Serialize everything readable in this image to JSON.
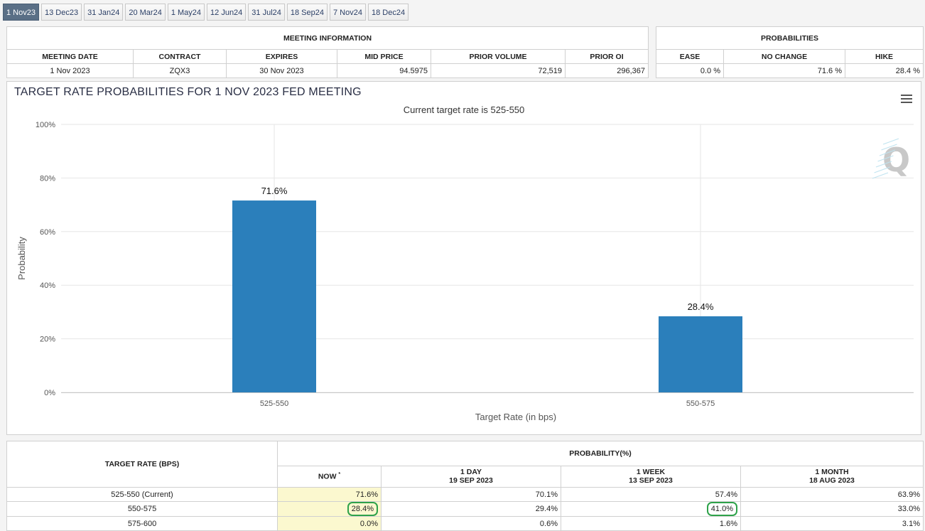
{
  "tabs": [
    "1 Nov23",
    "13 Dec23",
    "31 Jan24",
    "20 Mar24",
    "1 May24",
    "12 Jun24",
    "31 Jul24",
    "18 Sep24",
    "7 Nov24",
    "18 Dec24"
  ],
  "meeting_info": {
    "title": "MEETING INFORMATION",
    "headers": [
      "MEETING DATE",
      "CONTRACT",
      "EXPIRES",
      "MID PRICE",
      "PRIOR VOLUME",
      "PRIOR OI"
    ],
    "row": [
      "1 Nov 2023",
      "ZQX3",
      "30 Nov 2023",
      "94.5975",
      "72,519",
      "296,367"
    ]
  },
  "probabilities": {
    "title": "PROBABILITIES",
    "headers": [
      "EASE",
      "NO CHANGE",
      "HIKE"
    ],
    "row": [
      "0.0 %",
      "71.6 %",
      "28.4 %"
    ]
  },
  "chart": {
    "title": "TARGET RATE PROBABILITIES FOR 1 NOV 2023 FED MEETING",
    "subtitle": "Current target rate is 525-550",
    "watermark": "Q",
    "bar_color": "#2b7fbb"
  },
  "chart_data": {
    "type": "bar",
    "categories": [
      "525-550",
      "550-575"
    ],
    "values": [
      71.6,
      28.4
    ],
    "data_labels": [
      "71.6%",
      "28.4%"
    ],
    "xlabel": "Target Rate (in bps)",
    "ylabel": "Probability",
    "ylim": [
      0,
      100
    ],
    "yticks": [
      "0%",
      "20%",
      "40%",
      "60%",
      "80%",
      "100%"
    ],
    "grid": true
  },
  "rate_table": {
    "col0_header": "TARGET RATE (BPS)",
    "group_header": "PROBABILITY(%)",
    "sub_headers": [
      {
        "l1": "NOW",
        "l2": "",
        "sup": "*"
      },
      {
        "l1": "1 DAY",
        "l2": "19 SEP 2023",
        "sup": ""
      },
      {
        "l1": "1 WEEK",
        "l2": "13 SEP 2023",
        "sup": ""
      },
      {
        "l1": "1 MONTH",
        "l2": "18 AUG 2023",
        "sup": ""
      }
    ],
    "rows": [
      {
        "rate": "525-550 (Current)",
        "now": "71.6%",
        "day": "70.1%",
        "week": "57.4%",
        "month": "63.9%"
      },
      {
        "rate": "550-575",
        "now": "28.4%",
        "day": "29.4%",
        "week": "41.0%",
        "month": "33.0%"
      },
      {
        "rate": "575-600",
        "now": "0.0%",
        "day": "0.6%",
        "week": "1.6%",
        "month": "3.1%"
      }
    ]
  }
}
